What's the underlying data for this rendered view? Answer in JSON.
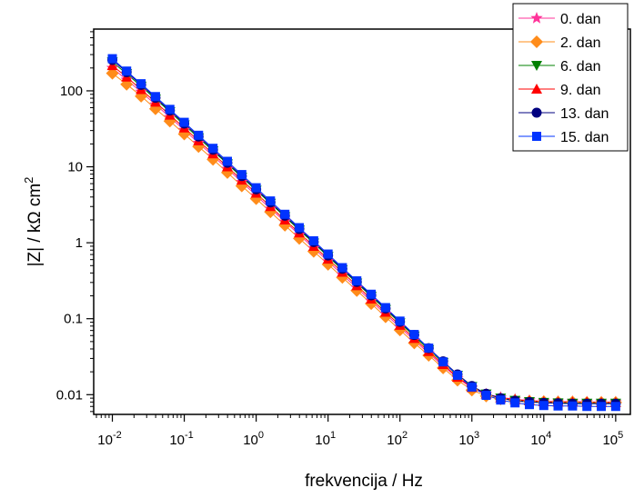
{
  "chart_data": {
    "type": "scatter",
    "xlabel": "frekvencija / Hz",
    "ylabel": "|Z| / kΩ cm",
    "ylabel_sup": "2",
    "x_scale": "log",
    "y_scale": "log",
    "xlim": [
      0.0055,
      160000
    ],
    "ylim": [
      0.0055,
      650
    ],
    "x_ticks": [
      {
        "base": "10",
        "exp": "-2",
        "value": 0.01
      },
      {
        "base": "10",
        "exp": "-1",
        "value": 0.1
      },
      {
        "base": "10",
        "exp": "0",
        "value": 1
      },
      {
        "base": "10",
        "exp": "1",
        "value": 10
      },
      {
        "base": "10",
        "exp": "2",
        "value": 100
      },
      {
        "base": "10",
        "exp": "3",
        "value": 1000
      },
      {
        "base": "10",
        "exp": "4",
        "value": 10000
      },
      {
        "base": "10",
        "exp": "5",
        "value": 100000
      }
    ],
    "y_ticks": [
      {
        "label": "0.01",
        "value": 0.01
      },
      {
        "label": "0.1",
        "value": 0.1
      },
      {
        "label": "1",
        "value": 1
      },
      {
        "label": "10",
        "value": 10
      },
      {
        "label": "100",
        "value": 100
      }
    ],
    "grid": false,
    "legend_position": "top-right",
    "x": [
      0.01,
      0.0158,
      0.0251,
      0.0398,
      0.0631,
      0.1,
      0.158,
      0.251,
      0.398,
      0.631,
      1,
      1.58,
      2.51,
      3.98,
      6.31,
      10,
      15.8,
      25.1,
      39.8,
      63.1,
      100,
      158,
      251,
      398,
      631,
      1000,
      1580,
      2510,
      3980,
      6310,
      10000,
      15800,
      25100,
      39800,
      63100,
      100000
    ],
    "series": [
      {
        "name": "0. dan",
        "marker": "star",
        "color": "#ff3399",
        "values": [
          200,
          140,
          97,
          66,
          45,
          30.5,
          20.6,
          13.9,
          9.4,
          6.3,
          4.2,
          2.8,
          1.9,
          1.27,
          0.85,
          0.57,
          0.38,
          0.255,
          0.17,
          0.115,
          0.077,
          0.052,
          0.035,
          0.024,
          0.0165,
          0.0123,
          0.0102,
          0.0092,
          0.0087,
          0.0084,
          0.0082,
          0.0081,
          0.0081,
          0.008,
          0.008,
          0.008
        ]
      },
      {
        "name": "2. dan",
        "marker": "diamond",
        "color": "#ff8c1a",
        "values": [
          170,
          122,
          85,
          58,
          40,
          27,
          18.5,
          12.5,
          8.4,
          5.6,
          3.8,
          2.55,
          1.7,
          1.14,
          0.77,
          0.52,
          0.35,
          0.235,
          0.158,
          0.106,
          0.071,
          0.048,
          0.033,
          0.0225,
          0.0155,
          0.0115,
          0.0096,
          0.0088,
          0.0084,
          0.0082,
          0.0081,
          0.008,
          0.008,
          0.0079,
          0.0079,
          0.0079
        ]
      },
      {
        "name": "6. dan",
        "marker": "triangle-down",
        "color": "#008000",
        "values": [
          240,
          168,
          115,
          78,
          53,
          35.5,
          24,
          16.2,
          10.9,
          7.3,
          4.9,
          3.3,
          2.2,
          1.47,
          0.99,
          0.66,
          0.44,
          0.295,
          0.197,
          0.132,
          0.088,
          0.059,
          0.039,
          0.0265,
          0.018,
          0.0128,
          0.0102,
          0.009,
          0.0084,
          0.0081,
          0.0079,
          0.0078,
          0.0077,
          0.0077,
          0.0077,
          0.0077
        ]
      },
      {
        "name": "9. dan",
        "marker": "triangle-up",
        "color": "#ff0000",
        "values": [
          215,
          152,
          104,
          71,
          48,
          32.5,
          22,
          14.8,
          10,
          6.7,
          4.5,
          3.0,
          2.0,
          1.35,
          0.9,
          0.61,
          0.41,
          0.272,
          0.182,
          0.122,
          0.082,
          0.055,
          0.037,
          0.025,
          0.017,
          0.0125,
          0.0102,
          0.0091,
          0.0086,
          0.0083,
          0.0081,
          0.008,
          0.008,
          0.008,
          0.0079,
          0.0079
        ]
      },
      {
        "name": "13. dan",
        "marker": "circle",
        "color": "#000080",
        "values": [
          255,
          176,
          120,
          81,
          55,
          37,
          25,
          16.8,
          11.3,
          7.55,
          5.05,
          3.4,
          2.27,
          1.52,
          1.02,
          0.68,
          0.455,
          0.305,
          0.203,
          0.136,
          0.091,
          0.061,
          0.041,
          0.0275,
          0.0185,
          0.013,
          0.0103,
          0.009,
          0.0083,
          0.008,
          0.0078,
          0.0077,
          0.0076,
          0.0076,
          0.0076,
          0.0076
        ]
      },
      {
        "name": "15. dan",
        "marker": "square",
        "color": "#0033ff",
        "values": [
          265,
          182,
          124,
          84,
          57,
          38.5,
          26,
          17.5,
          11.8,
          7.9,
          5.3,
          3.55,
          2.37,
          1.58,
          1.06,
          0.71,
          0.47,
          0.315,
          0.21,
          0.14,
          0.093,
          0.062,
          0.041,
          0.027,
          0.018,
          0.0126,
          0.0098,
          0.0085,
          0.0078,
          0.0074,
          0.0072,
          0.0071,
          0.0071,
          0.007,
          0.007,
          0.007
        ]
      }
    ]
  }
}
